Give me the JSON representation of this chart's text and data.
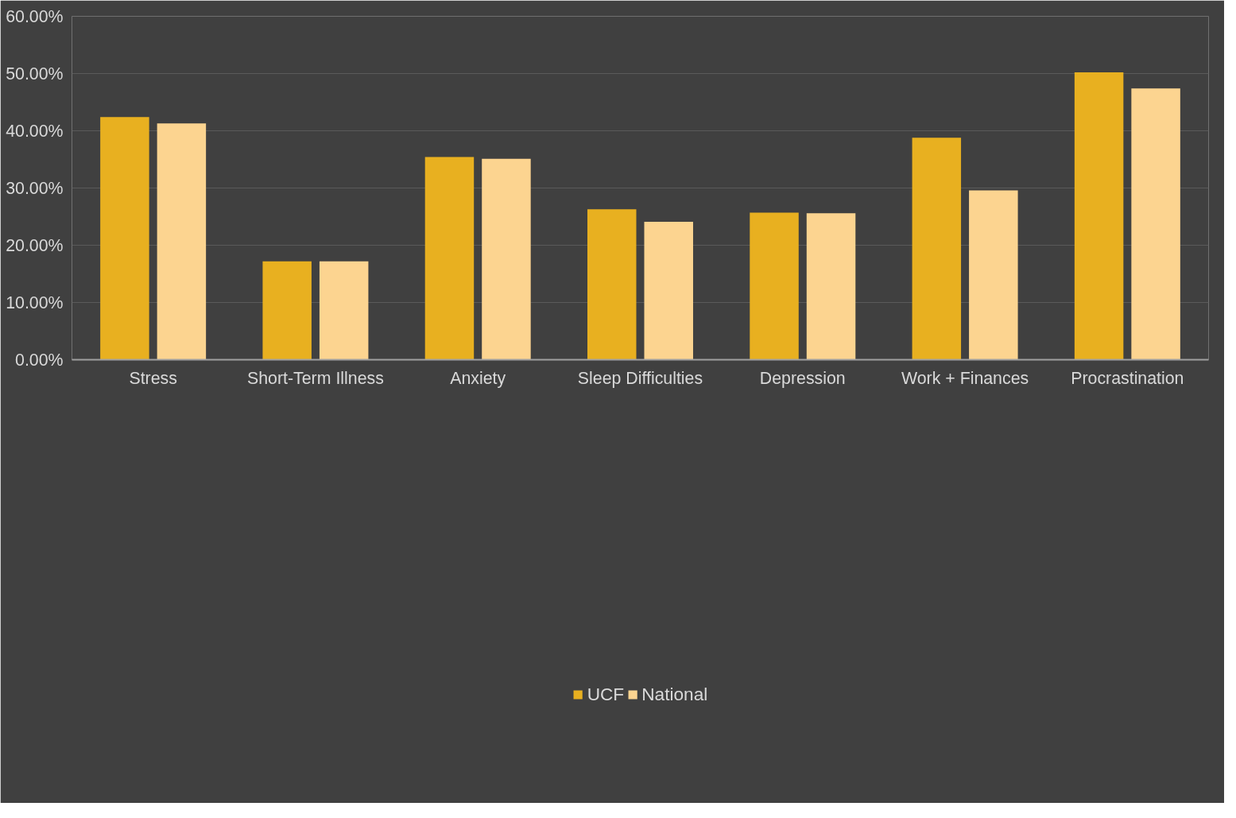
{
  "chart_data": {
    "type": "bar",
    "categories": [
      "Stress",
      "Short-Term Illness",
      "Anxiety",
      "Sleep Difficulties",
      "Depression",
      "Work + Finances",
      "Procrastination"
    ],
    "series": [
      {
        "name": "UCF",
        "color": "#e8b020",
        "values": [
          42.4,
          17.2,
          35.4,
          26.3,
          25.7,
          38.8,
          50.2
        ]
      },
      {
        "name": "National",
        "color": "#fcd490",
        "values": [
          41.3,
          17.2,
          35.1,
          24.1,
          25.6,
          29.6,
          47.4
        ]
      }
    ],
    "ylim": [
      0,
      60
    ],
    "yticks": [
      {
        "value": 0,
        "label": "0.00%"
      },
      {
        "value": 10,
        "label": "10.00%"
      },
      {
        "value": 20,
        "label": "20.00%"
      },
      {
        "value": 30,
        "label": "30.00%"
      },
      {
        "value": 40,
        "label": "40.00%"
      },
      {
        "value": 50,
        "label": "50.00%"
      },
      {
        "value": 60,
        "label": "60.00%"
      }
    ],
    "grid": "y",
    "legend": "bottom"
  }
}
